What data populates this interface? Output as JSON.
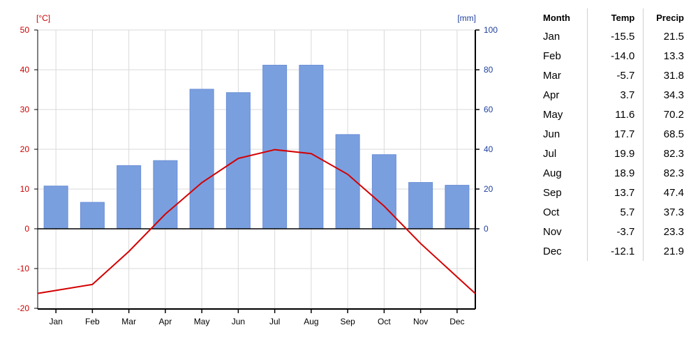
{
  "chart_data": {
    "type": "bar+line",
    "categories": [
      "Jan",
      "Feb",
      "Mar",
      "Apr",
      "May",
      "Jun",
      "Jul",
      "Aug",
      "Sep",
      "Oct",
      "Nov",
      "Dec"
    ],
    "series": [
      {
        "type": "bar",
        "axis": "right",
        "color": "#7a9fdf",
        "values": [
          21.5,
          13.3,
          31.8,
          34.3,
          70.2,
          68.5,
          82.3,
          82.3,
          47.4,
          37.3,
          23.3,
          21.9
        ]
      },
      {
        "type": "line",
        "axis": "left",
        "color": "#d40000",
        "values": [
          -15.5,
          -14.0,
          -5.7,
          3.7,
          11.6,
          17.7,
          19.9,
          18.9,
          13.7,
          5.7,
          -3.7,
          -12.1
        ]
      }
    ],
    "y_left": {
      "unit": "[°C]",
      "range": [
        -20,
        50
      ],
      "ticks": [
        "50",
        "40",
        "30",
        "20",
        "10",
        "0",
        "-10",
        "-20"
      ],
      "color": "#cc0000"
    },
    "y_right": {
      "unit": "[mm]",
      "range": [
        0,
        100
      ],
      "ticks": [
        "100",
        "80",
        "60",
        "40",
        "20",
        "0"
      ],
      "color": "#1f3f9f"
    },
    "grid": true
  },
  "table": {
    "headers": [
      "Month",
      "Temp",
      "Precip"
    ],
    "rows": [
      [
        "Jan",
        "-15.5",
        "21.5"
      ],
      [
        "Feb",
        "-14.0",
        "13.3"
      ],
      [
        "Mar",
        "-5.7",
        "31.8"
      ],
      [
        "Apr",
        "3.7",
        "34.3"
      ],
      [
        "May",
        "11.6",
        "70.2"
      ],
      [
        "Jun",
        "17.7",
        "68.5"
      ],
      [
        "Jul",
        "19.9",
        "82.3"
      ],
      [
        "Aug",
        "18.9",
        "82.3"
      ],
      [
        "Sep",
        "13.7",
        "47.4"
      ],
      [
        "Oct",
        "5.7",
        "37.3"
      ],
      [
        "Nov",
        "-3.7",
        "23.3"
      ],
      [
        "Dec",
        "-12.1",
        "21.9"
      ]
    ]
  }
}
